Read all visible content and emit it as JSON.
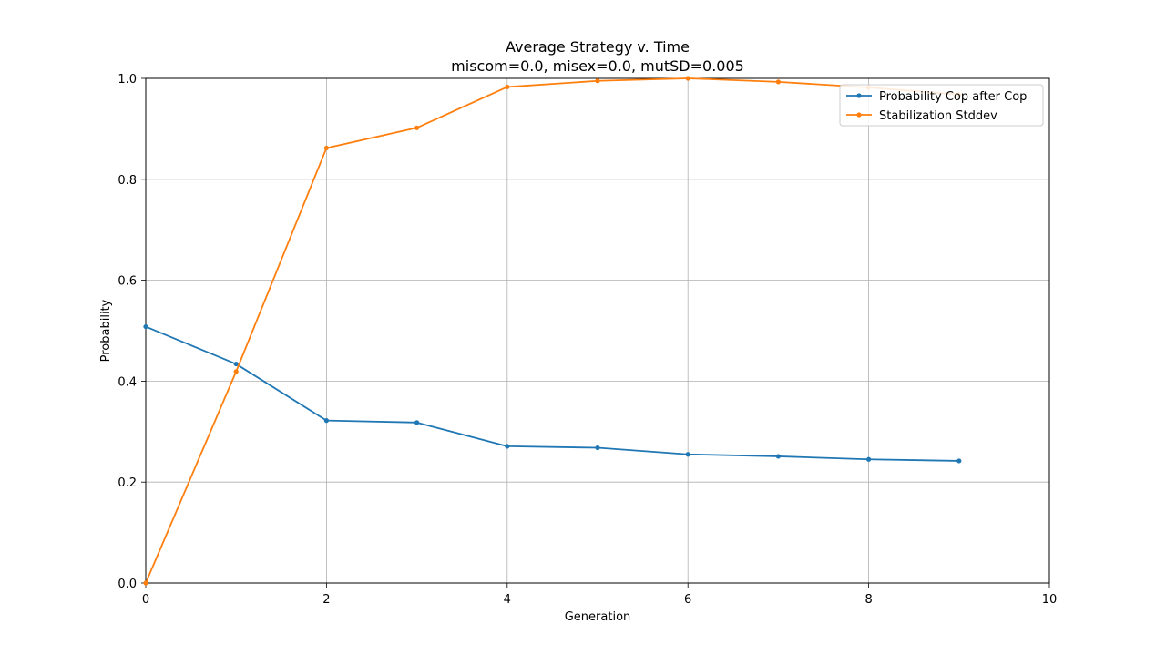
{
  "chart_data": {
    "type": "line",
    "title": "Average Strategy v. Time",
    "subtitle": "miscom=0.0, misex=0.0, mutSD=0.005",
    "xlabel": "Generation",
    "ylabel": "Probability",
    "xlim": [
      0,
      10
    ],
    "ylim": [
      0,
      1
    ],
    "xticks": [
      "0",
      "2",
      "4",
      "6",
      "8",
      "10"
    ],
    "yticks": [
      "0.0",
      "0.2",
      "0.4",
      "0.6",
      "0.8",
      "1.0"
    ],
    "grid": true,
    "legend_position": "top-right",
    "x": [
      0,
      1,
      2,
      3,
      4,
      5,
      6,
      7,
      8,
      9
    ],
    "series": [
      {
        "name": "Probability Cop after Cop",
        "color": "#1f77b4",
        "values": [
          0.508,
          0.434,
          0.322,
          0.318,
          0.271,
          0.268,
          0.255,
          0.251,
          0.245,
          0.242
        ]
      },
      {
        "name": "Stabilization Stddev",
        "color": "#ff7f0e",
        "values": [
          0.0,
          0.419,
          0.862,
          0.902,
          0.983,
          0.995,
          1.0,
          0.993,
          0.982,
          0.968
        ]
      }
    ]
  }
}
